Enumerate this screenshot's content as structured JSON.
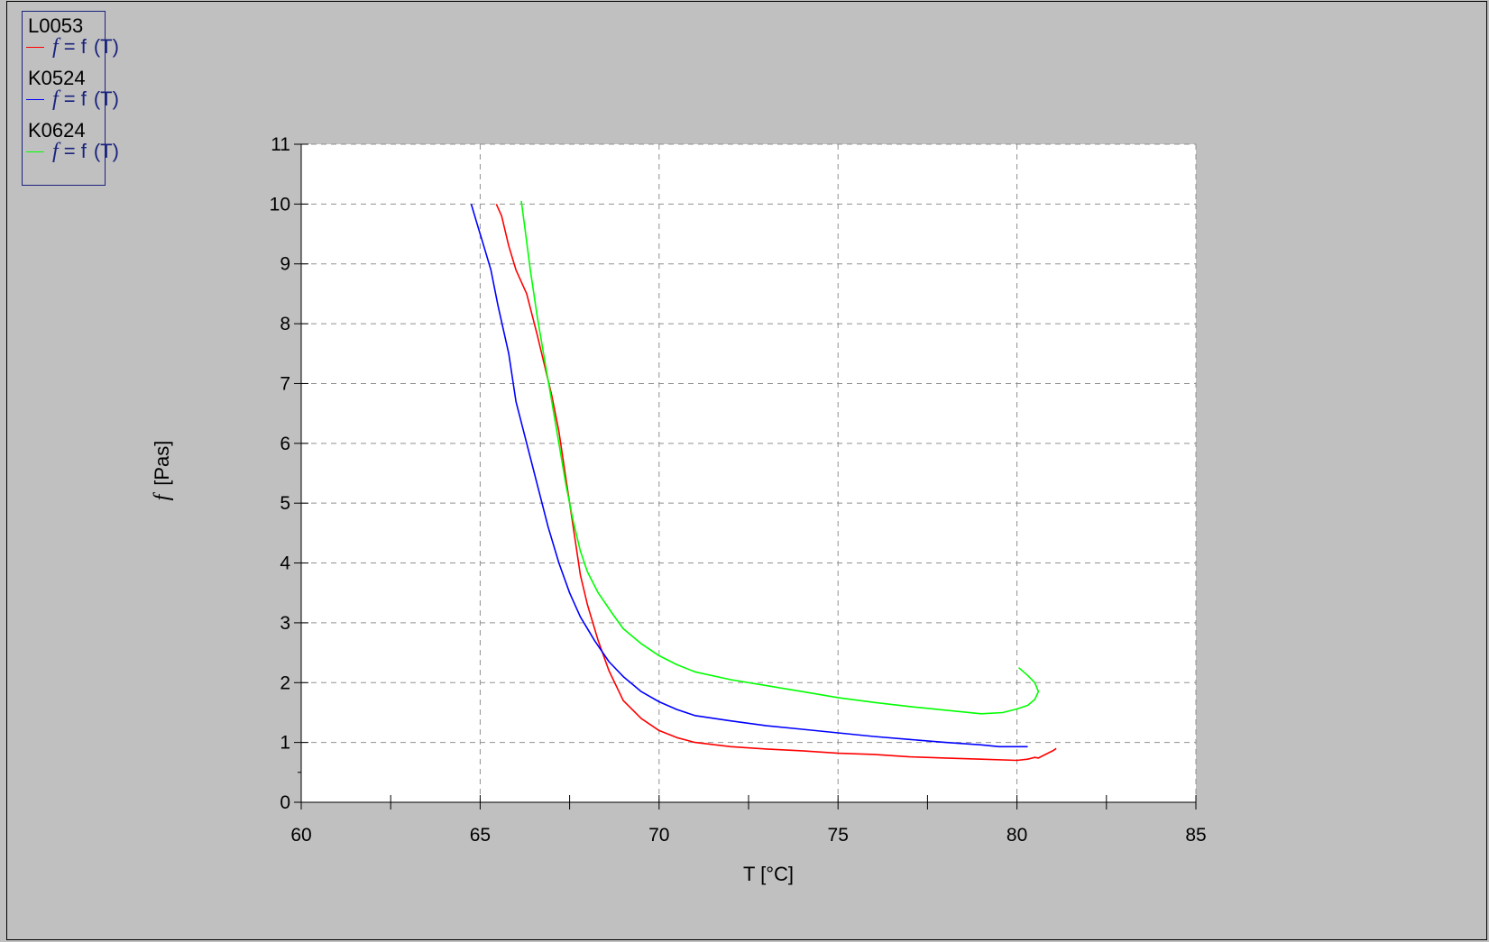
{
  "legend": {
    "entries": [
      {
        "name": "L0053",
        "func_prefix": "f",
        "func_mid": " = f",
        "func_arg": "(T)",
        "color": "#ff0000"
      },
      {
        "name": "K0524",
        "func_prefix": "f",
        "func_mid": " = f",
        "func_arg": "(T)",
        "color": "#0000ff"
      },
      {
        "name": "K0624",
        "func_prefix": "f",
        "func_mid": " = f",
        "func_arg": "(T)",
        "color": "#00ff00"
      }
    ]
  },
  "chart_data": {
    "type": "line",
    "xlabel": "T  [°C]",
    "ylabel_symbol": "f",
    "ylabel": "[Pas]",
    "xlim": [
      60,
      85
    ],
    "ylim": [
      0,
      11
    ],
    "x_ticks": [
      60,
      65,
      70,
      75,
      80,
      85
    ],
    "y_ticks": [
      0,
      1,
      2,
      3,
      4,
      5,
      6,
      7,
      8,
      9,
      10,
      11
    ],
    "grid": true,
    "legend_position": "top-left",
    "series": [
      {
        "name": "L0053",
        "color": "#ff0000",
        "x": [
          65.45,
          65.6,
          65.8,
          66.0,
          66.3,
          66.6,
          66.8,
          67.0,
          67.2,
          67.4,
          67.6,
          67.8,
          68.0,
          68.3,
          68.6,
          69.0,
          69.5,
          70.0,
          70.5,
          71.0,
          72.0,
          73.0,
          74.0,
          75.0,
          76.0,
          77.0,
          78.0,
          79.0,
          80.0,
          80.3,
          80.5,
          80.6,
          80.8,
          81.0,
          81.1
        ],
        "y": [
          10.0,
          9.8,
          9.3,
          8.9,
          8.5,
          7.8,
          7.3,
          6.8,
          6.2,
          5.4,
          4.6,
          3.8,
          3.3,
          2.7,
          2.2,
          1.7,
          1.4,
          1.2,
          1.08,
          1.0,
          0.93,
          0.89,
          0.86,
          0.82,
          0.8,
          0.76,
          0.74,
          0.72,
          0.7,
          0.72,
          0.75,
          0.74,
          0.8,
          0.86,
          0.9
        ]
      },
      {
        "name": "K0524",
        "color": "#0000ff",
        "x": [
          64.75,
          64.9,
          65.1,
          65.3,
          65.5,
          65.8,
          66.0,
          66.3,
          66.6,
          66.9,
          67.2,
          67.5,
          67.8,
          68.2,
          68.6,
          69.0,
          69.5,
          70.0,
          70.5,
          71.0,
          72.0,
          73.0,
          74.0,
          75.0,
          76.0,
          77.0,
          78.0,
          79.0,
          79.5,
          80.0,
          80.3
        ],
        "y": [
          10.0,
          9.7,
          9.3,
          8.9,
          8.3,
          7.5,
          6.7,
          6.0,
          5.3,
          4.6,
          4.0,
          3.5,
          3.1,
          2.7,
          2.35,
          2.1,
          1.85,
          1.68,
          1.55,
          1.45,
          1.36,
          1.28,
          1.22,
          1.16,
          1.1,
          1.05,
          1.0,
          0.96,
          0.93,
          0.93,
          0.93
        ]
      },
      {
        "name": "K0624",
        "color": "#00ff00",
        "x": [
          66.15,
          66.25,
          66.4,
          66.6,
          66.8,
          67.0,
          67.2,
          67.4,
          67.6,
          67.8,
          68.0,
          68.3,
          68.7,
          69.0,
          69.5,
          70.0,
          70.5,
          71.0,
          72.0,
          73.0,
          74.0,
          75.0,
          76.0,
          77.0,
          78.0,
          79.0,
          79.6,
          80.0,
          80.3,
          80.5,
          80.6,
          80.5,
          80.3,
          80.05
        ],
        "y": [
          10.05,
          9.6,
          8.9,
          8.1,
          7.4,
          6.7,
          6.0,
          5.3,
          4.7,
          4.2,
          3.85,
          3.5,
          3.15,
          2.9,
          2.65,
          2.45,
          2.3,
          2.18,
          2.05,
          1.95,
          1.85,
          1.75,
          1.67,
          1.6,
          1.54,
          1.48,
          1.5,
          1.56,
          1.62,
          1.72,
          1.85,
          2.0,
          2.12,
          2.25
        ]
      }
    ]
  }
}
